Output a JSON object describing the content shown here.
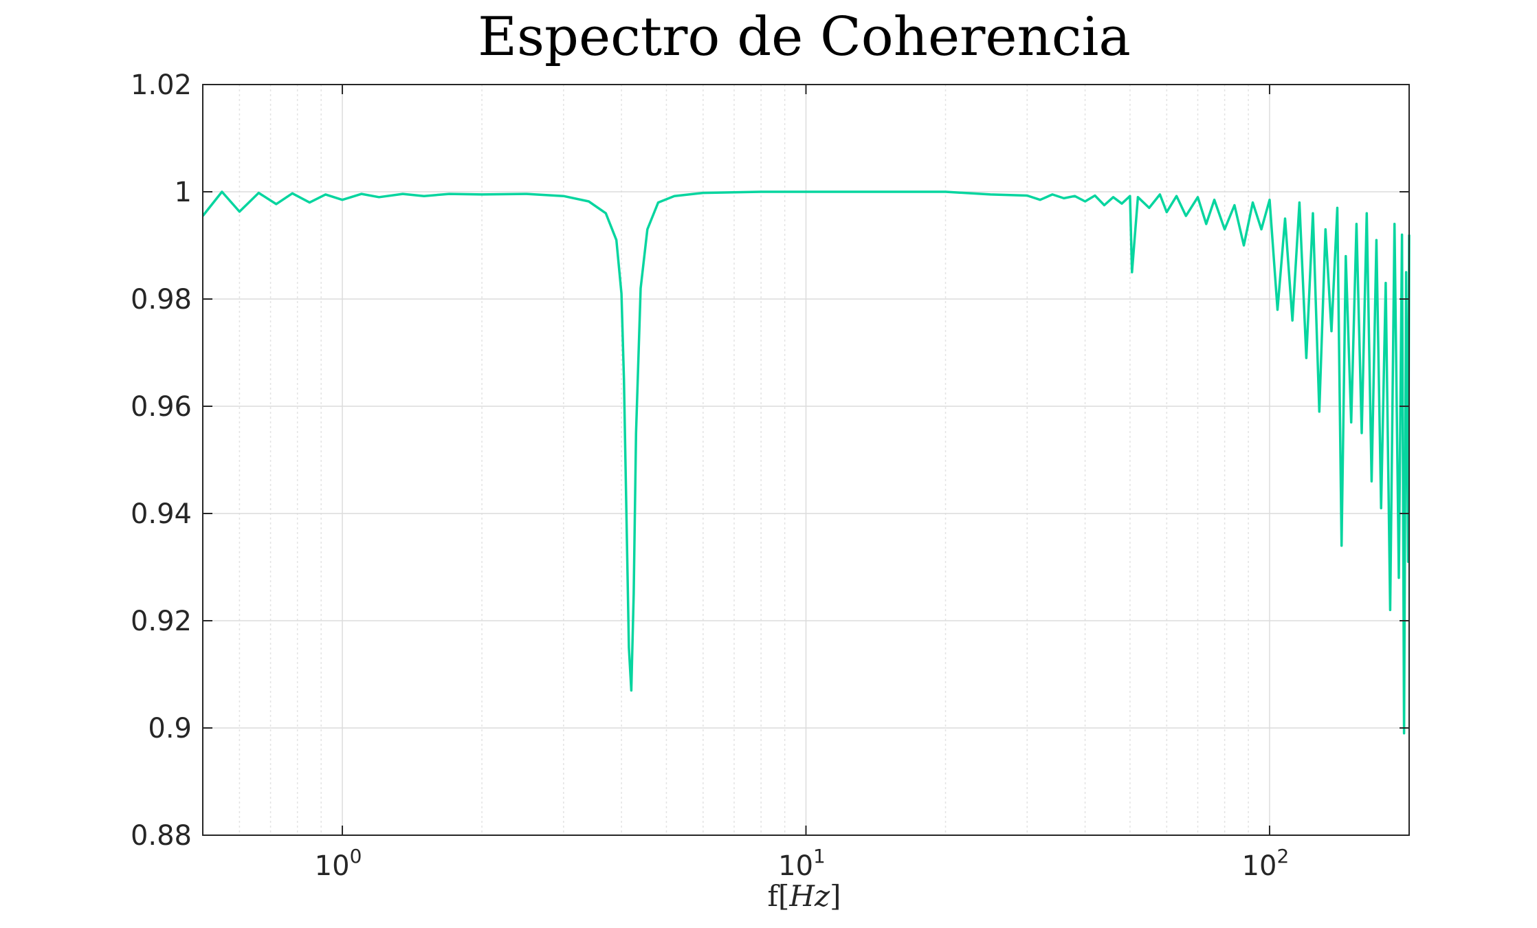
{
  "chart_data": {
    "type": "line",
    "title": "Espectro de Coherencia",
    "xlabel": {
      "prefix": "f[",
      "italic": "Hz",
      "suffix": "]"
    },
    "ylabel": "",
    "xscale": "log",
    "xlim": [
      0.5,
      200
    ],
    "ylim": [
      0.88,
      1.02
    ],
    "grid": true,
    "legend": "none",
    "x_ticks": [
      {
        "value": 1,
        "base": "10",
        "exp": "0"
      },
      {
        "value": 10,
        "base": "10",
        "exp": "1"
      },
      {
        "value": 100,
        "base": "10",
        "exp": "2"
      }
    ],
    "y_ticks": [
      0.88,
      0.9,
      0.92,
      0.94,
      0.96,
      0.98,
      1,
      1.02
    ],
    "y_tick_labels": [
      "0.88",
      "0.9",
      "0.92",
      "0.94",
      "0.96",
      "0.98",
      "1",
      "1.02"
    ],
    "series": [
      {
        "color": "#07d59f",
        "x": [
          0.5,
          0.55,
          0.6,
          0.66,
          0.72,
          0.78,
          0.85,
          0.92,
          1.0,
          1.1,
          1.2,
          1.35,
          1.5,
          1.7,
          2.0,
          2.5,
          3.0,
          3.4,
          3.7,
          3.9,
          4.0,
          4.05,
          4.1,
          4.15,
          4.2,
          4.25,
          4.3,
          4.4,
          4.55,
          4.8,
          5.2,
          6.0,
          8.0,
          10.0,
          15.0,
          20.0,
          25.0,
          30.0,
          32.0,
          34.0,
          36.0,
          38.0,
          40.0,
          42.0,
          44.0,
          46.0,
          48.0,
          50.0,
          50.5,
          52.0,
          55.0,
          58.0,
          60.0,
          63.0,
          66.0,
          70.0,
          73.0,
          76.0,
          80.0,
          84.0,
          88.0,
          92.0,
          96.0,
          100.0,
          104.0,
          108.0,
          112.0,
          116.0,
          120.0,
          124.0,
          128.0,
          132.0,
          136.0,
          140.0,
          143.0,
          146.0,
          150.0,
          154.0,
          158.0,
          162.0,
          166.0,
          170.0,
          174.0,
          178.0,
          182.0,
          186.0,
          190.0,
          193.0,
          195.0,
          197.0,
          199.0,
          200.0
        ],
        "y": [
          0.9955,
          1.0,
          0.9963,
          0.9998,
          0.9977,
          0.9997,
          0.998,
          0.9995,
          0.9985,
          0.9996,
          0.999,
          0.9996,
          0.9992,
          0.9996,
          0.9995,
          0.9996,
          0.9992,
          0.9982,
          0.996,
          0.991,
          0.981,
          0.965,
          0.94,
          0.915,
          0.907,
          0.925,
          0.955,
          0.982,
          0.993,
          0.998,
          0.9992,
          0.9998,
          1.0,
          1.0,
          1.0,
          1.0,
          0.9995,
          0.9993,
          0.9985,
          0.9995,
          0.9988,
          0.9992,
          0.9982,
          0.9993,
          0.9975,
          0.999,
          0.9978,
          0.9992,
          0.985,
          0.999,
          0.997,
          0.9995,
          0.9962,
          0.9992,
          0.9955,
          0.999,
          0.994,
          0.9985,
          0.993,
          0.9975,
          0.99,
          0.998,
          0.993,
          0.9985,
          0.978,
          0.995,
          0.976,
          0.998,
          0.969,
          0.996,
          0.959,
          0.993,
          0.974,
          0.997,
          0.934,
          0.988,
          0.957,
          0.994,
          0.955,
          0.996,
          0.946,
          0.991,
          0.941,
          0.983,
          0.922,
          0.994,
          0.928,
          0.992,
          0.899,
          0.985,
          0.931,
          0.992
        ]
      }
    ]
  }
}
